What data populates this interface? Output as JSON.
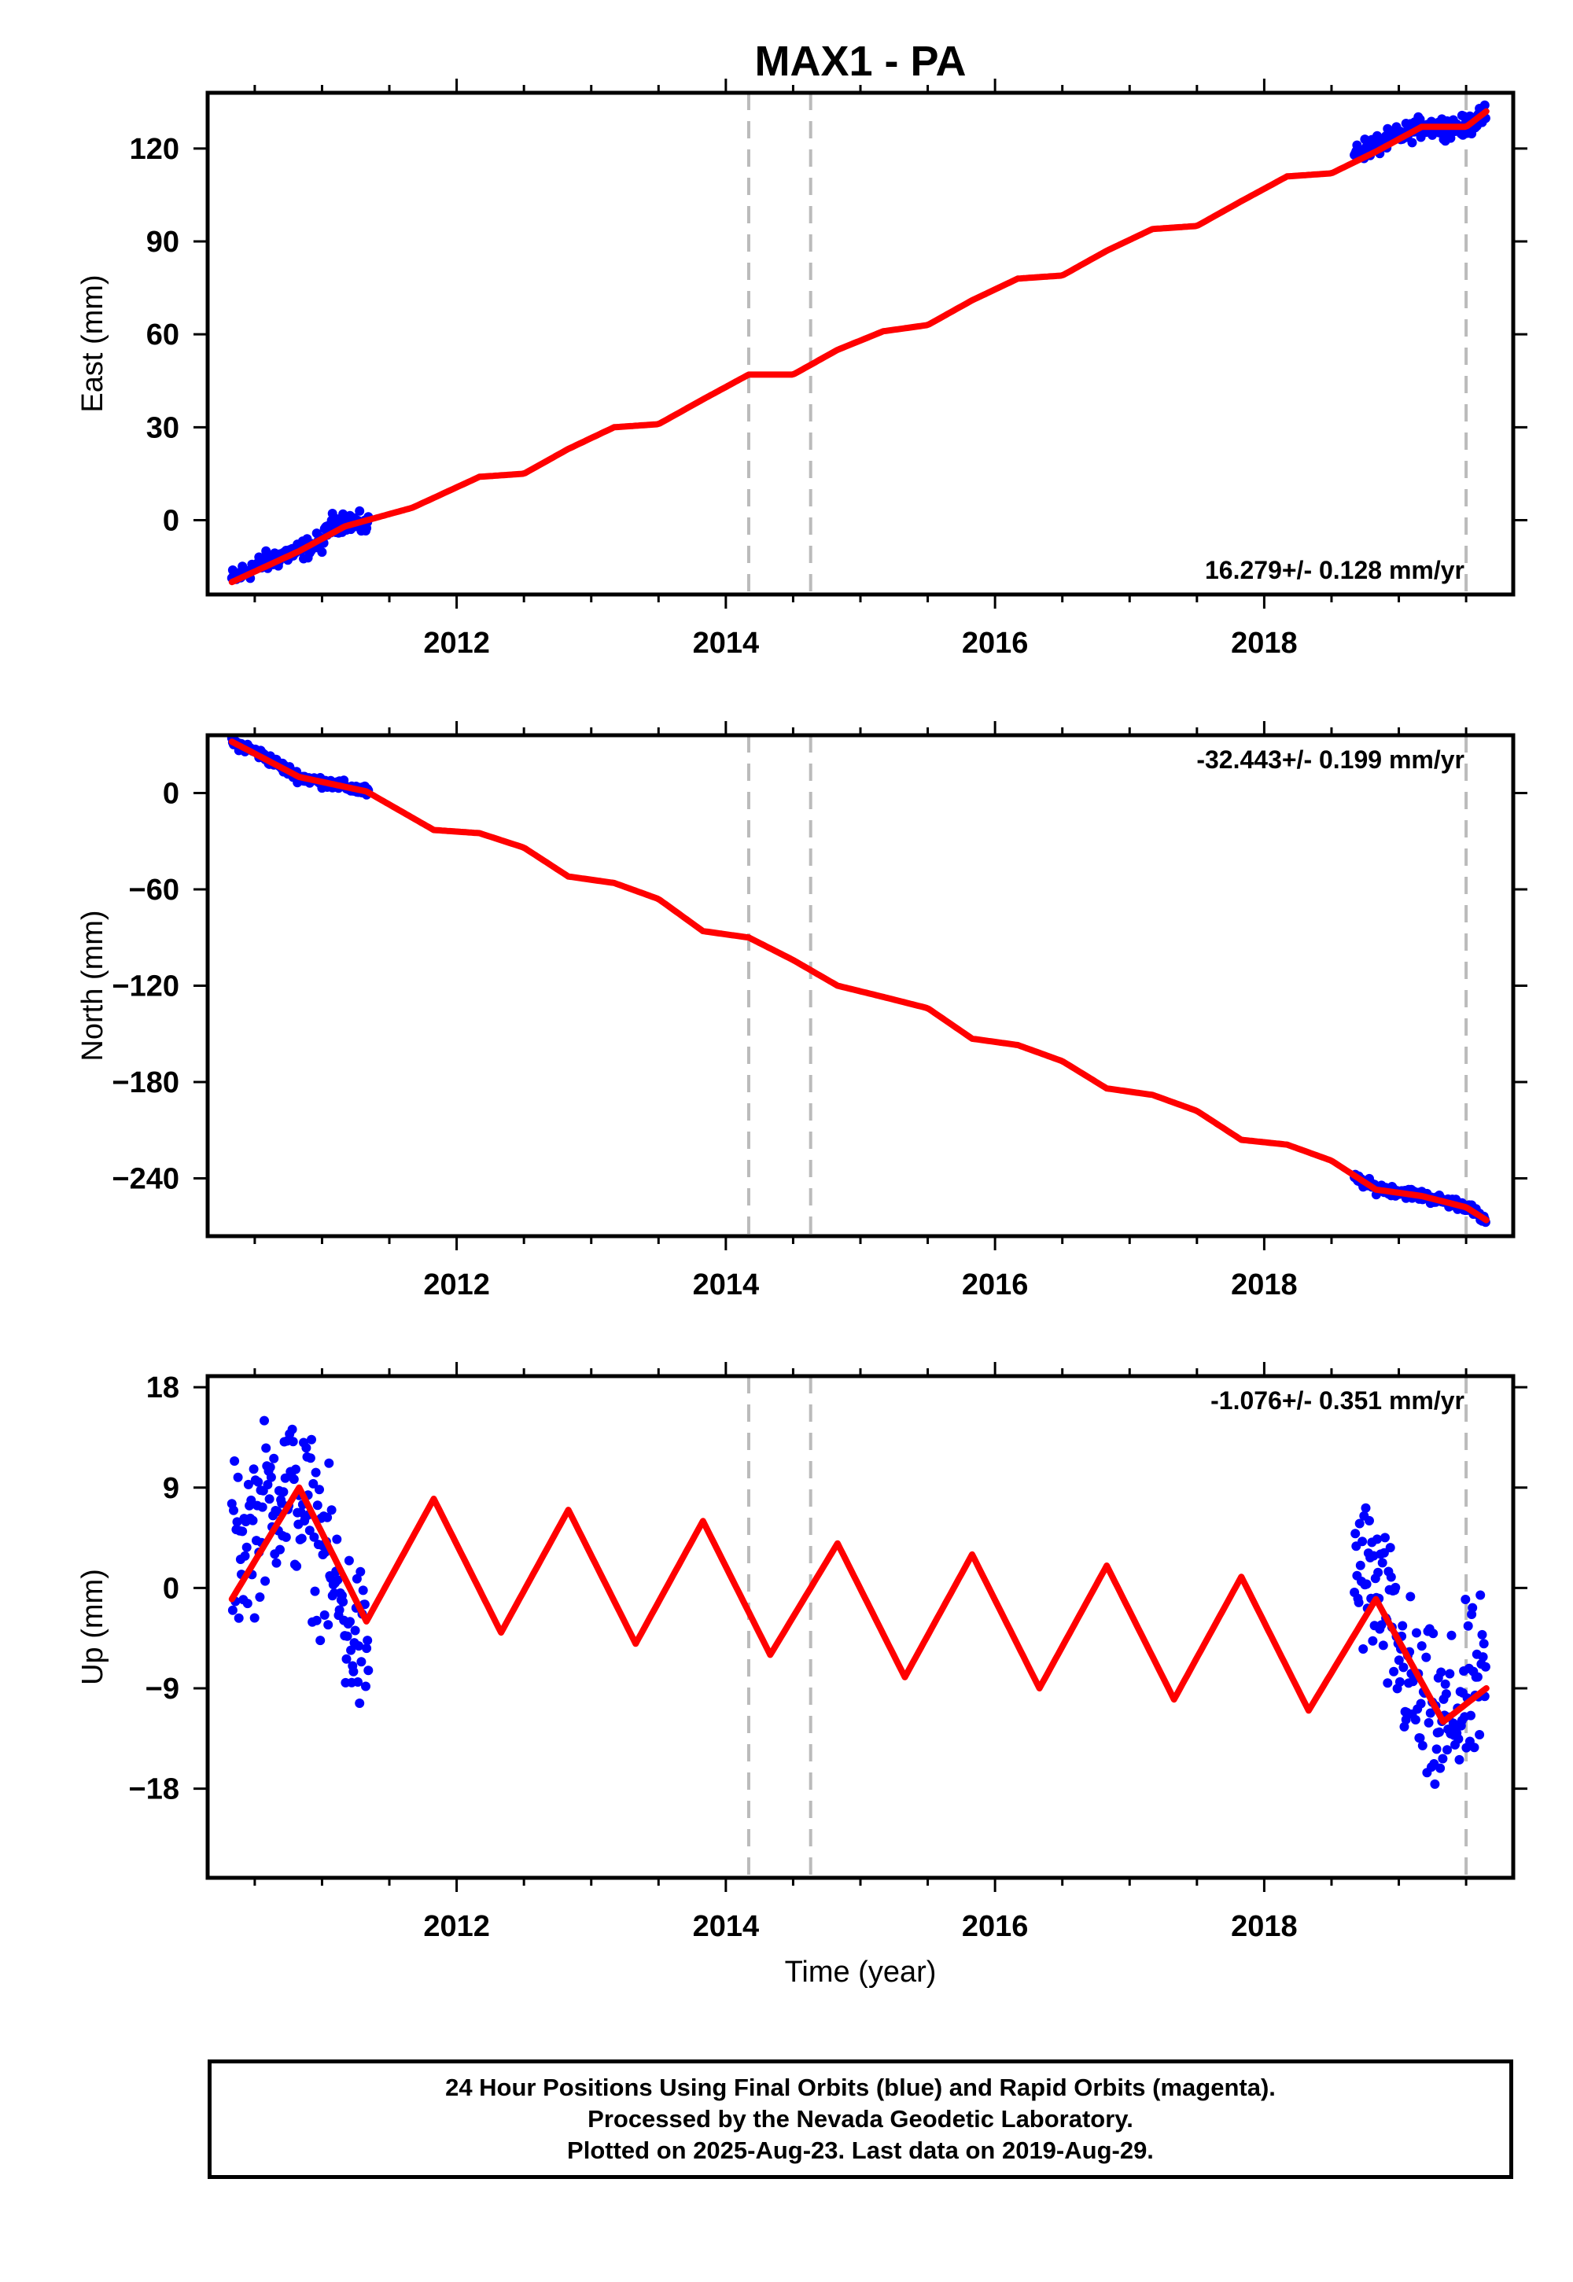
{
  "title": "MAX1 - PA",
  "colors": {
    "data": "#0000ff",
    "model": "#ff0000",
    "event": "#bbbbbb"
  },
  "xaxis": {
    "label": "Time (year)",
    "xlim": [
      2010.15,
      2019.85
    ],
    "ticks": [
      2012,
      2014,
      2016,
      2018
    ],
    "minor_step": 0.5
  },
  "events": [
    2014.17,
    2014.63,
    2019.5
  ],
  "footer": {
    "line1": "24 Hour Positions Using Final Orbits (blue) and Rapid Orbits (magenta).",
    "line2": "Processed by the Nevada Geodetic Laboratory.",
    "line3": "Plotted on 2025-Aug-23. Last data on 2019-Aug-29."
  },
  "chart_data": [
    {
      "type": "scatter",
      "panel": "east",
      "ylabel": "East (mm)",
      "ylim": [
        -24,
        138
      ],
      "yticks": [
        0,
        30,
        60,
        90,
        120
      ],
      "ytick_labels": [
        "0",
        "30",
        "60",
        "90",
        "120"
      ],
      "rate_text": "16.279+/- 0.128 mm/yr",
      "rate_position": "bottom-right",
      "series": [
        {
          "kind": "observations",
          "color": "blue",
          "x": [
            2010.33,
            2010.5,
            2010.67,
            2010.83,
            2011.0,
            2011.08,
            2011.17,
            2011.33,
            2018.67,
            2018.83,
            2019.0,
            2019.17,
            2019.33,
            2019.5,
            2019.65
          ],
          "y": [
            -19,
            -15,
            -12,
            -10,
            -7,
            -1,
            0,
            -2,
            119,
            121,
            124,
            127,
            127,
            127,
            131
          ]
        },
        {
          "kind": "model",
          "color": "red",
          "x": [
            2010.33,
            2010.83,
            2011.17,
            2011.67,
            2012.17,
            2012.5,
            2012.83,
            2013.17,
            2013.5,
            2013.83,
            2014.17,
            2014.5,
            2014.83,
            2015.17,
            2015.5,
            2015.83,
            2016.17,
            2016.5,
            2016.83,
            2017.17,
            2017.5,
            2017.83,
            2018.17,
            2018.5,
            2018.83,
            2019.17,
            2019.5,
            2019.65
          ],
          "y": [
            -20,
            -10,
            -2,
            4,
            14,
            15,
            23,
            30,
            31,
            39,
            47,
            47,
            55,
            61,
            63,
            71,
            78,
            79,
            87,
            94,
            95,
            103,
            111,
            112,
            119,
            127,
            127,
            132
          ]
        }
      ]
    },
    {
      "type": "scatter",
      "panel": "north",
      "ylabel": "North (mm)",
      "ylim": [
        -276,
        36
      ],
      "yticks": [
        0,
        -60,
        -120,
        -180,
        -240
      ],
      "ytick_labels": [
        "0",
        "−60",
        "−120",
        "−180",
        "−240"
      ],
      "rate_text": "-32.443+/- 0.199 mm/yr",
      "rate_position": "top-right",
      "series": [
        {
          "kind": "observations",
          "color": "blue",
          "x": [
            2010.33,
            2010.5,
            2010.67,
            2010.83,
            2011.0,
            2011.17,
            2011.33,
            2018.67,
            2018.83,
            2019.0,
            2019.17,
            2019.33,
            2019.5,
            2019.65
          ],
          "y": [
            32,
            26,
            18,
            10,
            7,
            4,
            1,
            -240,
            -246,
            -248,
            -251,
            -254,
            -257,
            -267
          ]
        },
        {
          "kind": "model",
          "color": "red",
          "x": [
            2010.33,
            2010.83,
            2011.33,
            2011.83,
            2012.17,
            2012.5,
            2012.83,
            2013.17,
            2013.5,
            2013.83,
            2014.17,
            2014.5,
            2014.83,
            2015.17,
            2015.5,
            2015.83,
            2016.17,
            2016.5,
            2016.83,
            2017.17,
            2017.5,
            2017.83,
            2018.17,
            2018.5,
            2018.83,
            2019.17,
            2019.5,
            2019.65
          ],
          "y": [
            32,
            10,
            1,
            -23,
            -25,
            -34,
            -52,
            -56,
            -66,
            -86,
            -90,
            -104,
            -120,
            -127,
            -134,
            -153,
            -157,
            -167,
            -184,
            -188,
            -198,
            -216,
            -219,
            -229,
            -247,
            -251,
            -258,
            -266
          ]
        }
      ]
    },
    {
      "type": "scatter",
      "panel": "up",
      "ylabel": "Up (mm)",
      "ylim": [
        -26,
        19
      ],
      "yticks": [
        18,
        9,
        0,
        -9,
        -18
      ],
      "ytick_labels": [
        "18",
        "9",
        "0",
        "−9",
        "−18"
      ],
      "rate_text": "-1.076+/- 0.351 mm/yr",
      "rate_position": "top-right",
      "series": [
        {
          "kind": "observations",
          "color": "blue",
          "x": [
            2010.33,
            2010.5,
            2010.67,
            2010.83,
            2011.0,
            2011.17,
            2011.33,
            2018.67,
            2018.83,
            2019.0,
            2019.17,
            2019.33,
            2019.5,
            2019.65
          ],
          "y": [
            3,
            6,
            9,
            8,
            4,
            -3,
            -6,
            2,
            0,
            -6,
            -11,
            -13,
            -10,
            -8
          ]
        },
        {
          "kind": "model",
          "color": "red",
          "x": [
            2010.33,
            2010.83,
            2011.33,
            2011.83,
            2012.33,
            2012.83,
            2013.33,
            2013.83,
            2014.33,
            2014.83,
            2015.33,
            2015.83,
            2016.33,
            2016.83,
            2017.33,
            2017.83,
            2018.33,
            2018.83,
            2019.33,
            2019.65
          ],
          "y": [
            -1,
            9,
            -3,
            8,
            -4,
            7,
            -5,
            6,
            -6,
            4,
            -8,
            3,
            -9,
            2,
            -10,
            1,
            -11,
            -1,
            -12,
            -9
          ]
        }
      ]
    }
  ]
}
